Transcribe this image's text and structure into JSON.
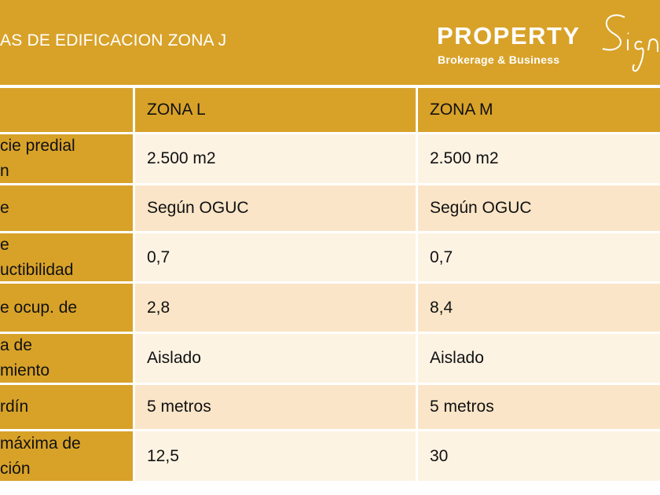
{
  "banner": {
    "title": "AS DE EDIFICACION  ZONA J",
    "logo_main": "PROPERTY",
    "logo_script": "Sign",
    "logo_sub": "Brokerage & Business"
  },
  "table": {
    "headers": [
      "",
      "ZONA L",
      "ZONA M"
    ],
    "rows": [
      {
        "label": [
          "cie predial",
          "n"
        ],
        "zona_l": "2.500 m2",
        "zona_m": "2.500 m2"
      },
      {
        "label": [
          "e"
        ],
        "zona_l": "Según OGUC",
        "zona_m": "Según OGUC"
      },
      {
        "label": [
          "e",
          "uctibilidad"
        ],
        "zona_l": "0,7",
        "zona_m": "0,7"
      },
      {
        "label": [
          "e ocup. de",
          ""
        ],
        "zona_l": "2,8",
        "zona_m": "8,4"
      },
      {
        "label": [
          "a de",
          "miento"
        ],
        "zona_l": "Aislado",
        "zona_m": "Aislado"
      },
      {
        "label": [
          "rdín"
        ],
        "zona_l": "5 metros",
        "zona_m": "5 metros"
      },
      {
        "label": [
          "máxima de",
          "ción"
        ],
        "zona_l": "12,5",
        "zona_m": "30"
      }
    ]
  },
  "colors": {
    "gold": "#D8A229",
    "row_light": "#FDF3E3",
    "row_dark": "#FAE5C8"
  }
}
